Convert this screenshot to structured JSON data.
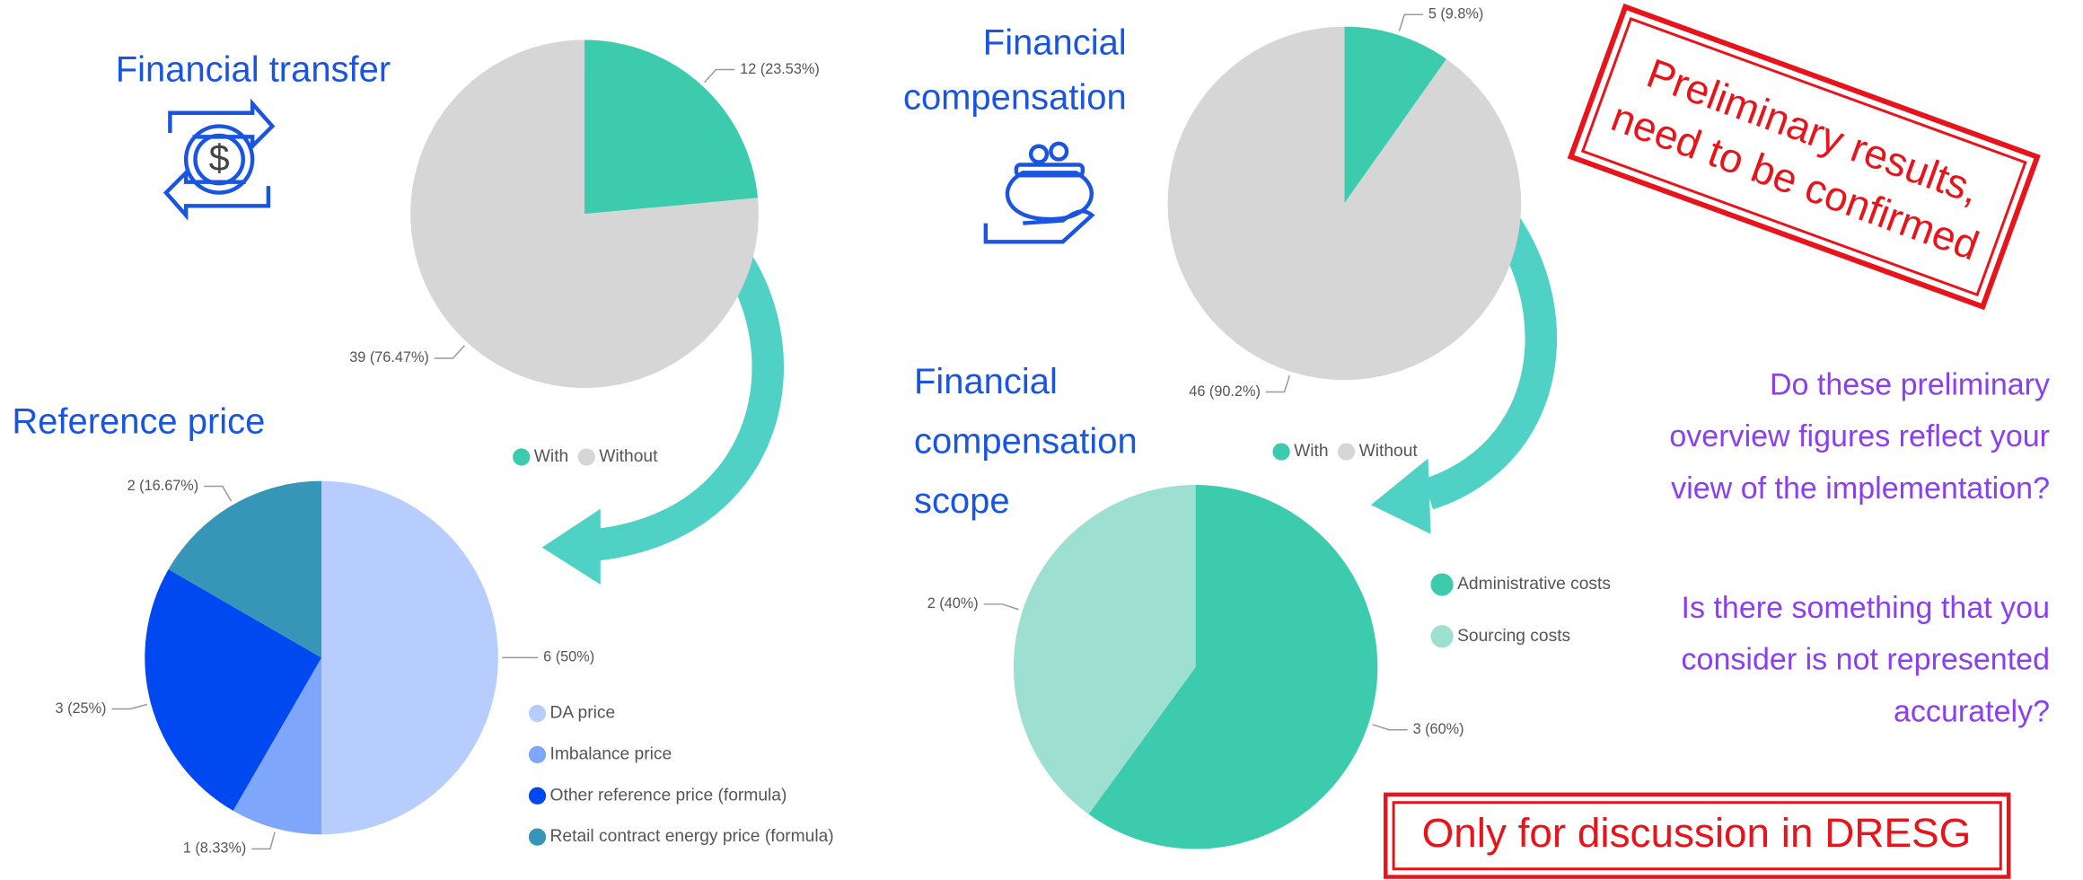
{
  "chart_data": [
    {
      "type": "pie",
      "title": "Financial transfer",
      "categories": [
        "With",
        "Without"
      ],
      "values": [
        12,
        39
      ],
      "value_labels": [
        "12 (23.53%)",
        "39 (76.47%)"
      ],
      "colors": [
        "#3dcbad",
        "#d6d6d6"
      ],
      "legend": "bottom"
    },
    {
      "type": "pie",
      "title": "Financial compensation",
      "categories": [
        "With",
        "Without"
      ],
      "values": [
        5,
        46
      ],
      "value_labels": [
        "5 (9.8%)",
        "46 (90.2%)"
      ],
      "colors": [
        "#3dcbad",
        "#d6d6d6"
      ],
      "legend": "bottom"
    },
    {
      "type": "pie",
      "title": "Reference price",
      "categories": [
        "DA price",
        "Imbalance price",
        "Other reference price (formula)",
        "Retail contract energy price (formula)"
      ],
      "values": [
        6,
        1,
        3,
        2
      ],
      "value_labels": [
        "6 (50%)",
        "1 (8.33%)",
        "3 (25%)",
        "2 (16.67%)"
      ],
      "colors": [
        "#b7cdfd",
        "#7ea7fc",
        "#0048f0",
        "#3796b8"
      ],
      "legend": "right"
    },
    {
      "type": "pie",
      "title": "Financial compensation scope",
      "categories": [
        "Administrative costs",
        "Sourcing costs"
      ],
      "values": [
        3,
        2
      ],
      "value_labels": [
        "3 (60%)",
        "2 (40%)"
      ],
      "colors": [
        "#3dcbad",
        "#9ddfd0"
      ],
      "legend": "right"
    }
  ],
  "stamp": [
    "Preliminary results,",
    "need to be confirmed"
  ],
  "questions": [
    "Do these preliminary overview figures reflect your view of the implementation?",
    "Is there something that you consider is not represented accurately?"
  ],
  "footer": "Only for discussion in DRESG"
}
